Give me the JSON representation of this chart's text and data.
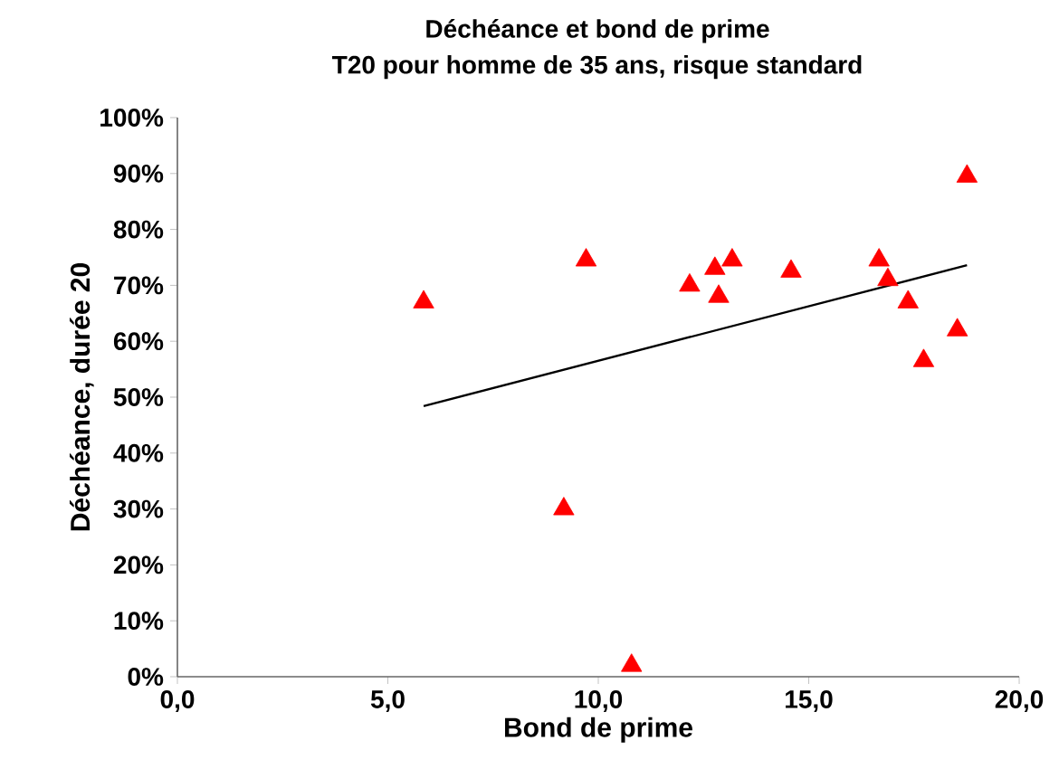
{
  "chart_data": {
    "type": "scatter",
    "title": "Déchéance et bond de prime",
    "subtitle": "T20 pour homme de 35 ans, risque standard",
    "xlabel": "Bond de prime",
    "ylabel": "Déchéance, durée 20",
    "xlim": [
      0,
      20
    ],
    "ylim": [
      0,
      100
    ],
    "xticks": [
      {
        "value": 0,
        "label": "0,0"
      },
      {
        "value": 5,
        "label": "5,0"
      },
      {
        "value": 10,
        "label": "10,0"
      },
      {
        "value": 15,
        "label": "15,0"
      },
      {
        "value": 20,
        "label": "20,0"
      }
    ],
    "yticks": [
      {
        "value": 0,
        "label": "0%"
      },
      {
        "value": 10,
        "label": "10%"
      },
      {
        "value": 20,
        "label": "20%"
      },
      {
        "value": 30,
        "label": "30%"
      },
      {
        "value": 40,
        "label": "40%"
      },
      {
        "value": 50,
        "label": "50%"
      },
      {
        "value": 60,
        "label": "60%"
      },
      {
        "value": 70,
        "label": "70%"
      },
      {
        "value": 80,
        "label": "80%"
      },
      {
        "value": 90,
        "label": "90%"
      },
      {
        "value": 100,
        "label": "100%"
      }
    ],
    "series": [
      {
        "color": "#ff0000",
        "marker": "triangle",
        "x": [
          5.85,
          9.71,
          9.18,
          10.79,
          12.17,
          12.77,
          12.86,
          13.18,
          14.58,
          16.67,
          16.88,
          17.36,
          17.73,
          18.53,
          18.76
        ],
        "values": [
          67,
          74.5,
          30,
          2,
          70,
          73,
          68,
          74.5,
          72.5,
          74.5,
          71,
          67,
          56.5,
          62,
          89.5
        ]
      },
      {
        "type": "line",
        "color": "#000000",
        "marker": "none",
        "x": [
          5.85,
          18.76
        ],
        "values": [
          48.4,
          73.6
        ]
      }
    ]
  }
}
